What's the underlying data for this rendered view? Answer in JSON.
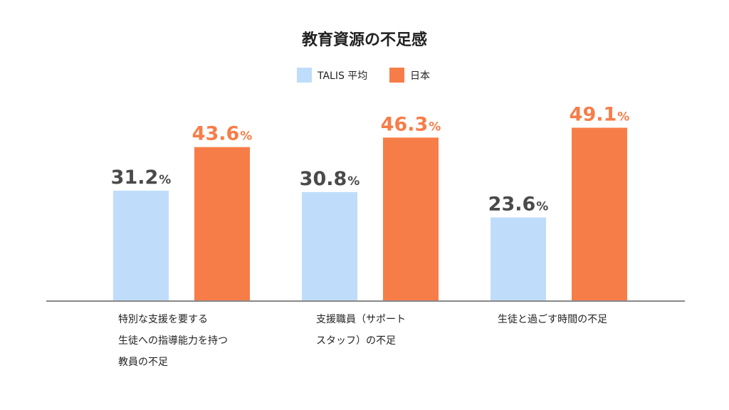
{
  "chart_data": {
    "type": "bar",
    "title": "教育資源の不足感",
    "categories": [
      [
        "特別な支援を要する",
        "生徒への指導能力を持つ",
        "教員の不足"
      ],
      [
        "支援職員（サポート",
        "スタッフ）の不足"
      ],
      [
        "生徒と過ごす時間の不足"
      ]
    ],
    "series": [
      {
        "name": "TALIS 平均",
        "values": [
          31.2,
          30.8,
          23.6
        ],
        "color": "#BFDDFB"
      },
      {
        "name": "日本",
        "values": [
          43.6,
          46.3,
          49.1
        ],
        "color": "#F77D48"
      }
    ],
    "unit": "%",
    "value_label_colors": [
      "#4A4A4A",
      "#F77D48"
    ],
    "ylim": [
      0,
      100
    ],
    "legend_position": "top-center",
    "grid": false,
    "baseline_color": "#888888"
  }
}
